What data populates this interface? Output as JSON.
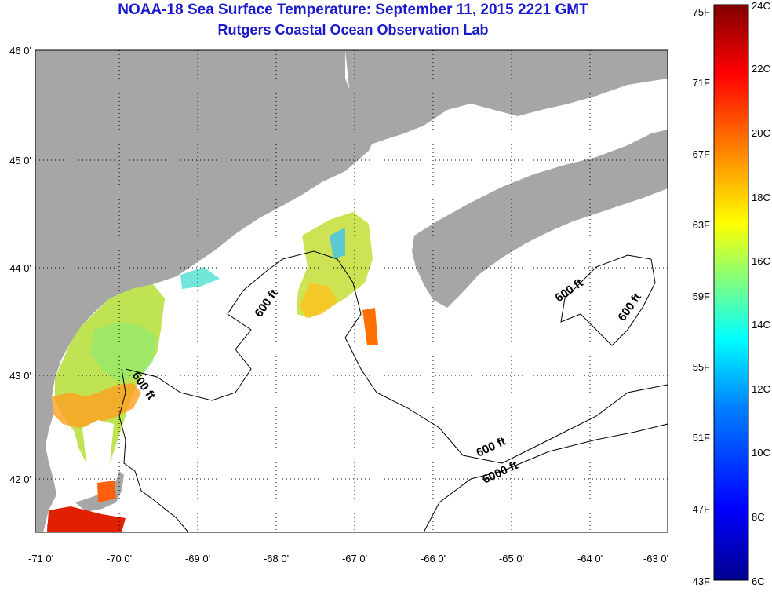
{
  "title": "NOAA-18 Sea Surface Temperature:  September 11, 2015 2221 GMT",
  "subtitle": "Rutgers Coastal Ocean Observation Lab",
  "colors": {
    "land": "#a6a6a6",
    "ocean": "#ffffff",
    "title": "#1a1acc",
    "colorbar": [
      "#00008f",
      "#0000ff",
      "#0080ff",
      "#00ffff",
      "#80ff80",
      "#ffff00",
      "#ff8000",
      "#ff0000",
      "#800000"
    ]
  },
  "axes": {
    "lon_labels": [
      "-71 0'",
      "-70 0'",
      "-69 0'",
      "-68 0'",
      "-67 0'",
      "-66 0'",
      "-65 0'",
      "-64 0'",
      "-63 0'"
    ],
    "lat_labels": [
      "46 0'",
      "45 0'",
      "44 0'",
      "43 0'",
      "42 0'"
    ],
    "lon_range": [
      -71,
      -63
    ],
    "lat_range": [
      41.5,
      46
    ],
    "grid": true
  },
  "colorbar": {
    "fahrenheit": [
      "75F",
      "71F",
      "67F",
      "63F",
      "59F",
      "55F",
      "51F",
      "47F",
      "43F"
    ],
    "celsius": [
      "24C",
      "22C",
      "20C",
      "18C",
      "16C",
      "14C",
      "12C",
      "10C",
      "8C",
      "6C"
    ]
  },
  "contours": [
    {
      "label": "600 ft"
    },
    {
      "label": "600 ft"
    },
    {
      "label": "600 ft"
    },
    {
      "label": "600 ft"
    },
    {
      "label": "600 ft"
    },
    {
      "label": "6000 ft"
    }
  ]
}
